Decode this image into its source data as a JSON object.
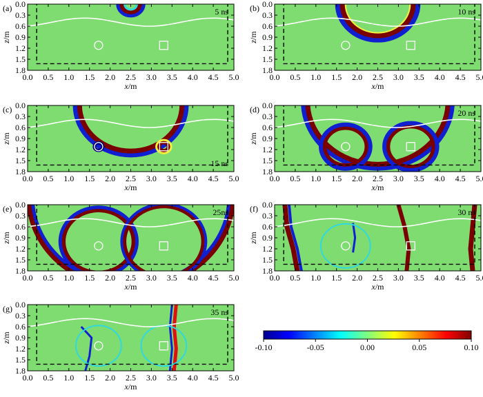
{
  "figure": {
    "x_axis": {
      "label_var": "x",
      "label_unit": "/m",
      "ticks": [
        "0.0",
        "0.5",
        "1.0",
        "1.5",
        "2.0",
        "2.5",
        "3.0",
        "3.5",
        "4.0",
        "4.5",
        "5.0"
      ],
      "range": [
        0,
        5
      ]
    },
    "z_axis": {
      "label_var": "z",
      "label_unit": "/m",
      "ticks": [
        "0.0",
        "0.3",
        "0.6",
        "0.9",
        "1.2",
        "1.5",
        "1.8"
      ],
      "range": [
        0,
        1.8
      ]
    },
    "panels": [
      {
        "letter": "(a)",
        "time_label": "5 ns"
      },
      {
        "letter": "(b)",
        "time_label": "10 ns"
      },
      {
        "letter": "(c)",
        "time_label": "15  ns"
      },
      {
        "letter": "(d)",
        "time_label": "20 ns"
      },
      {
        "letter": "(e)",
        "time_label": "25ns"
      },
      {
        "letter": "(f)",
        "time_label": "30 ns"
      },
      {
        "letter": "(g)",
        "time_label": "35 ns"
      }
    ],
    "colorbar": {
      "ticks": [
        "-0.10",
        "-0.05",
        "0.00",
        "0.05",
        "0.10"
      ],
      "range": [
        -0.1,
        0.1
      ],
      "colormap": [
        "#00008f",
        "#0000ff",
        "#00ffff",
        "#80ff80",
        "#ffff00",
        "#ff0000",
        "#800000"
      ]
    },
    "background_color": "#7fdc70",
    "interface_color": "#ffffff",
    "pml_line_color": "#000000"
  }
}
